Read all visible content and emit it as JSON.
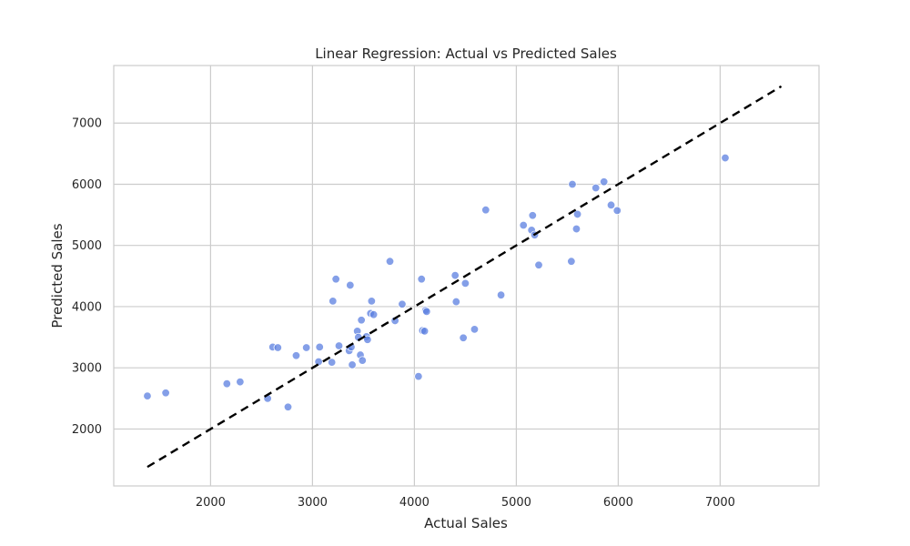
{
  "chart_data": {
    "type": "scatter",
    "title": "Linear Regression: Actual vs Predicted Sales",
    "xlabel": "Actual Sales",
    "ylabel": "Predicted Sales",
    "xlim": [
      1050,
      7970
    ],
    "ylim": [
      1070,
      7940
    ],
    "xticks": [
      2000,
      3000,
      4000,
      5000,
      6000,
      7000
    ],
    "yticks": [
      2000,
      3000,
      4000,
      5000,
      6000,
      7000
    ],
    "grid": true,
    "point_color": "#5b7fe0",
    "line_color": "#000000",
    "reference_line": {
      "style": "dashed",
      "from": [
        1380,
        1380
      ],
      "to": [
        7600,
        7600
      ]
    },
    "points": [
      [
        1380,
        2540
      ],
      [
        1560,
        2590
      ],
      [
        2160,
        2740
      ],
      [
        2290,
        2770
      ],
      [
        2560,
        2500
      ],
      [
        2610,
        3340
      ],
      [
        2660,
        3330
      ],
      [
        2760,
        2360
      ],
      [
        2840,
        3200
      ],
      [
        2940,
        3330
      ],
      [
        3060,
        3100
      ],
      [
        3070,
        3340
      ],
      [
        3190,
        3090
      ],
      [
        3200,
        4090
      ],
      [
        3230,
        4450
      ],
      [
        3260,
        3360
      ],
      [
        3360,
        3280
      ],
      [
        3370,
        4350
      ],
      [
        3380,
        3340
      ],
      [
        3390,
        3050
      ],
      [
        3440,
        3600
      ],
      [
        3450,
        3500
      ],
      [
        3470,
        3210
      ],
      [
        3480,
        3780
      ],
      [
        3490,
        3120
      ],
      [
        3530,
        3510
      ],
      [
        3540,
        3460
      ],
      [
        3570,
        3890
      ],
      [
        3580,
        4090
      ],
      [
        3600,
        3870
      ],
      [
        3760,
        4740
      ],
      [
        3810,
        3770
      ],
      [
        3880,
        4040
      ],
      [
        4040,
        2860
      ],
      [
        4070,
        4450
      ],
      [
        4080,
        3610
      ],
      [
        4100,
        3600
      ],
      [
        4110,
        3940
      ],
      [
        4120,
        3920
      ],
      [
        4400,
        4510
      ],
      [
        4410,
        4080
      ],
      [
        4480,
        3490
      ],
      [
        4500,
        4380
      ],
      [
        4590,
        3630
      ],
      [
        4700,
        5580
      ],
      [
        4850,
        4190
      ],
      [
        5070,
        5330
      ],
      [
        5150,
        5250
      ],
      [
        5160,
        5490
      ],
      [
        5180,
        5170
      ],
      [
        5220,
        4680
      ],
      [
        5540,
        4740
      ],
      [
        5550,
        6000
      ],
      [
        5590,
        5270
      ],
      [
        5600,
        5510
      ],
      [
        5780,
        5940
      ],
      [
        5860,
        6040
      ],
      [
        5930,
        5660
      ],
      [
        5990,
        5570
      ],
      [
        7050,
        6430
      ]
    ]
  }
}
